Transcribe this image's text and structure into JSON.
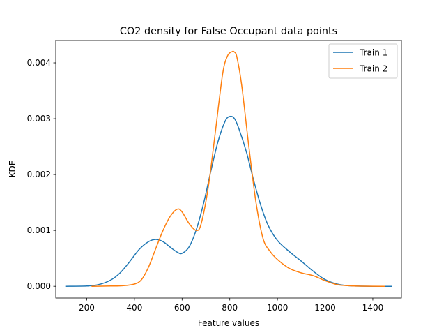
{
  "chart_data": {
    "type": "line",
    "title": "CO2 density for False Occupant data points",
    "xlabel": "Feature values",
    "ylabel": "KDE",
    "xlim": [
      70,
      1520
    ],
    "ylim": [
      -0.00021,
      0.0044
    ],
    "xticks": [
      200,
      400,
      600,
      800,
      1000,
      1200,
      1400
    ],
    "yticks": [
      0.0,
      0.001,
      0.002,
      0.003,
      0.004
    ],
    "ytick_labels": [
      "0.000",
      "0.001",
      "0.002",
      "0.003",
      "0.004"
    ],
    "grid": false,
    "legend_position": "top-right",
    "series": [
      {
        "name": "Train 1",
        "color": "#1f77b4",
        "x": [
          110,
          200,
          250,
          300,
          340,
          380,
          420,
          460,
          490,
          520,
          550,
          580,
          600,
          630,
          660,
          690,
          720,
          750,
          780,
          800,
          820,
          840,
          870,
          900,
          930,
          960,
          1000,
          1050,
          1100,
          1150,
          1200,
          1250,
          1300,
          1350,
          1400,
          1480
        ],
        "y": [
          0.0,
          5e-06,
          3e-05,
          0.00011,
          0.00024,
          0.00044,
          0.00066,
          0.0008,
          0.00084,
          0.0008,
          0.0007,
          0.00061,
          0.00059,
          0.00071,
          0.00102,
          0.00148,
          0.00205,
          0.00258,
          0.00295,
          0.00304,
          0.003,
          0.0028,
          0.0024,
          0.0019,
          0.00145,
          0.0011,
          0.00082,
          0.00062,
          0.00045,
          0.00027,
          0.00012,
          4e-05,
          1e-05,
          3e-06,
          0.0,
          0.0
        ]
      },
      {
        "name": "Train 2",
        "color": "#ff7f0e",
        "x": [
          220,
          300,
          350,
          400,
          430,
          460,
          490,
          520,
          550,
          580,
          600,
          630,
          660,
          680,
          710,
          740,
          770,
          790,
          810,
          820,
          830,
          850,
          880,
          910,
          940,
          970,
          1000,
          1050,
          1100,
          1150,
          1200,
          1250,
          1300,
          1350,
          1450
        ],
        "y": [
          0.0,
          5e-06,
          1e-05,
          4e-05,
          0.00012,
          0.00035,
          0.00068,
          0.001,
          0.00125,
          0.00138,
          0.00133,
          0.00112,
          0.001,
          0.00112,
          0.00178,
          0.00278,
          0.0038,
          0.00412,
          0.0042,
          0.00419,
          0.0041,
          0.0036,
          0.0025,
          0.0015,
          0.00085,
          0.00062,
          0.00048,
          0.00032,
          0.00024,
          0.00019,
          0.0001,
          3e-05,
          1e-05,
          2e-06,
          0.0
        ]
      }
    ]
  }
}
